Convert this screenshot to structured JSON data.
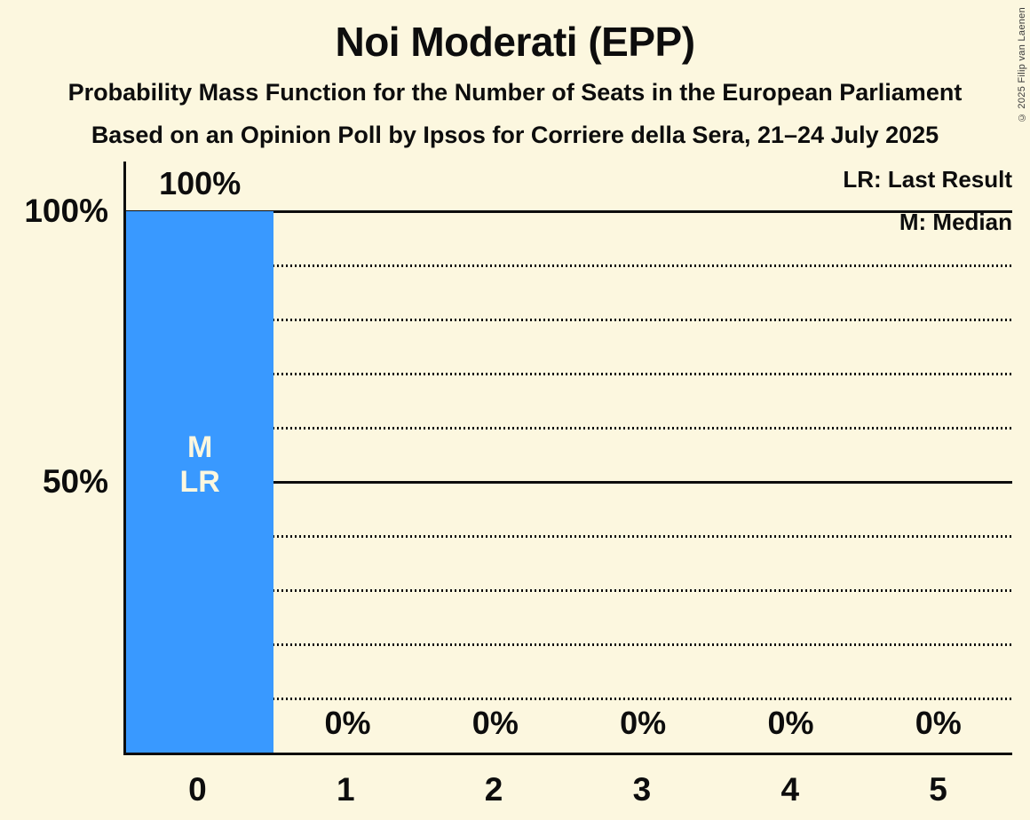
{
  "title": "Noi Moderati (EPP)",
  "subtitle_line1": "Probability Mass Function for the Number of Seats in the European Parliament",
  "subtitle_line2": "Based on an Opinion Poll by Ipsos for Corriere della Sera, 21–24 July 2025",
  "copyright": "© 2025 Filip van Laenen",
  "legend": {
    "last_result": "LR: Last Result",
    "median": "M: Median"
  },
  "colors": {
    "background": "#FCF7DF",
    "ink": "#0D0D0D",
    "bar": "#3999FF",
    "bar_text": "#FCF7DF"
  },
  "y_axis": {
    "labels": [
      "100%",
      "50%"
    ]
  },
  "annotations": {
    "median_marker": "M",
    "last_result_marker": "LR",
    "marker_column": 0
  },
  "chart_data": {
    "type": "bar",
    "categories": [
      "0",
      "1",
      "2",
      "3",
      "4",
      "5"
    ],
    "values": [
      100,
      0,
      0,
      0,
      0,
      0
    ],
    "bar_labels": [
      "100%",
      "0%",
      "0%",
      "0%",
      "0%",
      "0%"
    ],
    "title": "Noi Moderati (EPP)",
    "xlabel": "",
    "ylabel": "",
    "ylim": [
      0,
      100
    ],
    "gridlines": {
      "solid_pct": [
        100,
        50
      ],
      "dotted_pct": [
        90,
        80,
        70,
        60,
        40,
        30,
        20,
        10
      ]
    },
    "legend_position": "top-right",
    "median": 0,
    "last_result": 0
  }
}
